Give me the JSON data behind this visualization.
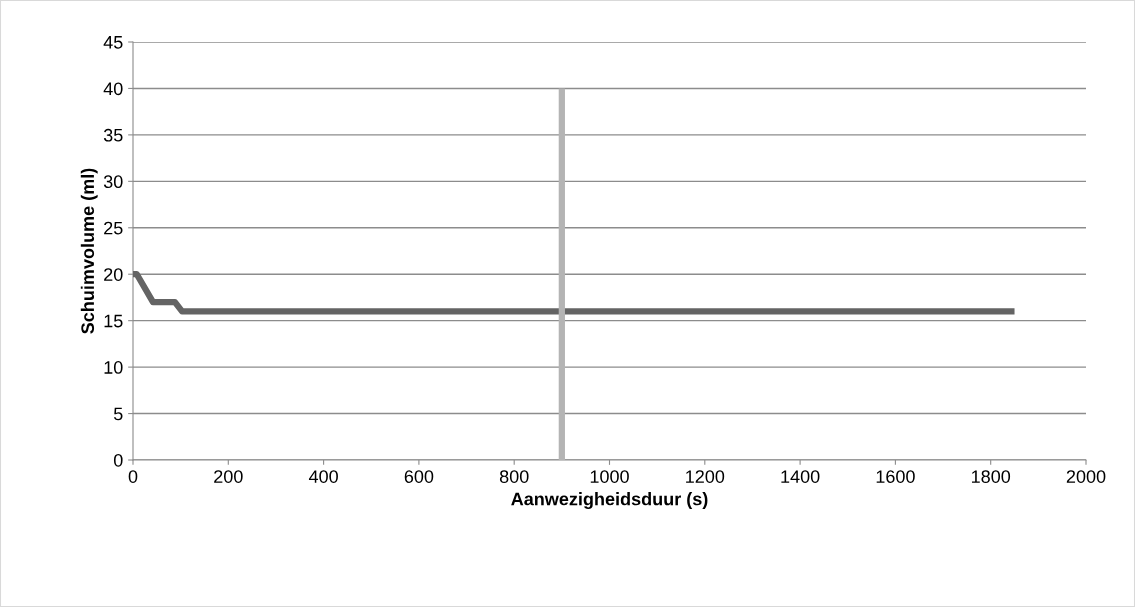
{
  "chart_data": {
    "type": "line",
    "xlabel": "Aanwezigheidsduur (s)",
    "ylabel": "Schuimvolume (ml)",
    "series": [
      {
        "color": "#646464",
        "x": [
          0,
          8,
          42,
          88,
          103,
          1850
        ],
        "values": [
          20,
          20,
          17,
          17,
          16,
          16
        ]
      },
      {
        "color": "#b4b4b4",
        "x": [
          900,
          900
        ],
        "values": [
          0,
          40
        ]
      }
    ],
    "xlim": [
      0,
      2000
    ],
    "xticks": [
      0,
      200,
      400,
      600,
      800,
      1000,
      1200,
      1400,
      1600,
      1800,
      2000
    ],
    "ylim": [
      0,
      45
    ],
    "yticks": [
      0,
      5,
      10,
      15,
      20,
      25,
      30,
      35,
      40,
      45
    ],
    "grid": "y",
    "legend": false,
    "marker": "none",
    "line_style": "solid"
  }
}
